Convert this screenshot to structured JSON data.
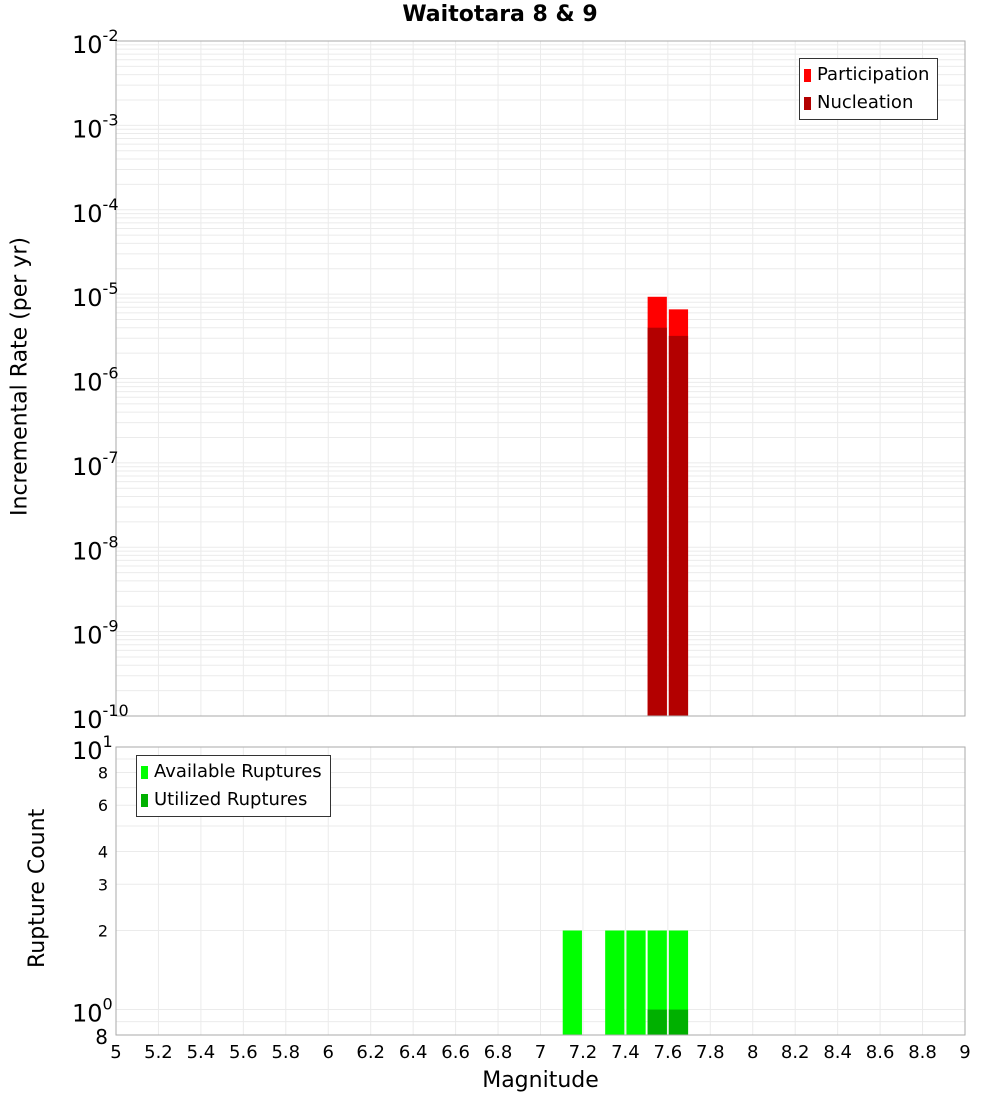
{
  "title": "Waitotara 8 & 9",
  "colors": {
    "participation": "#ff0000",
    "nucleation": "#b30000",
    "available": "#00ff00",
    "utilized": "#00b000",
    "grid": "#ebebeb",
    "frame": "#aaaaaa"
  },
  "top_plot": {
    "ylabel": "Incremental Rate (per yr)",
    "legend": [
      {
        "label": "Participation",
        "color": "#ff0000"
      },
      {
        "label": "Nucleation",
        "color": "#b30000"
      }
    ]
  },
  "bottom_plot": {
    "ylabel": "Rupture Count",
    "legend": [
      {
        "label": "Available Ruptures",
        "color": "#00ff00"
      },
      {
        "label": "Utilized Ruptures",
        "color": "#00b000"
      }
    ]
  },
  "xlabel": "Magnitude",
  "chart_data": [
    {
      "type": "bar",
      "title": "Waitotara 8 & 9",
      "xlabel": "Magnitude",
      "ylabel": "Incremental Rate (per yr)",
      "yscale": "log",
      "xlim": [
        5,
        9
      ],
      "ylim": [
        1e-10,
        0.01
      ],
      "xticks": [
        "5",
        "5.2",
        "5.4",
        "5.6",
        "5.8",
        "6",
        "6.2",
        "6.4",
        "6.6",
        "6.8",
        "7",
        "7.2",
        "7.4",
        "7.6",
        "7.8",
        "8",
        "8.2",
        "8.4",
        "8.6",
        "8.8",
        "9"
      ],
      "yticks": [
        "10^-10",
        "10^-9",
        "10^-8",
        "10^-7",
        "10^-6",
        "10^-5",
        "10^-4",
        "10^-3",
        "10^-2"
      ],
      "grid": true,
      "legend_position": "top-right",
      "bin_width": 0.1,
      "x": [
        7.55,
        7.65
      ],
      "series": [
        {
          "name": "Participation",
          "values": [
            9.3e-06,
            6.6e-06
          ]
        },
        {
          "name": "Nucleation",
          "values": [
            4e-06,
            3.2e-06
          ]
        }
      ]
    },
    {
      "type": "bar",
      "xlabel": "Magnitude",
      "ylabel": "Rupture Count",
      "yscale": "log",
      "xlim": [
        5,
        9
      ],
      "ylim": [
        0.8,
        10
      ],
      "xticks": [
        "5",
        "5.2",
        "5.4",
        "5.6",
        "5.8",
        "6",
        "6.2",
        "6.4",
        "6.6",
        "6.8",
        "7",
        "7.2",
        "7.4",
        "7.6",
        "7.8",
        "8",
        "8.2",
        "8.4",
        "8.6",
        "8.8",
        "9"
      ],
      "yticks": [
        "8",
        "10^0",
        "2",
        "3",
        "4",
        "6",
        "8",
        "10^1"
      ],
      "grid": true,
      "legend_position": "top-left",
      "bin_width": 0.1,
      "x": [
        7.15,
        7.35,
        7.45,
        7.55,
        7.65
      ],
      "series": [
        {
          "name": "Available Ruptures",
          "values": [
            2,
            2,
            2,
            2,
            2
          ]
        },
        {
          "name": "Utilized Ruptures",
          "values": [
            0,
            0,
            0,
            1,
            1
          ]
        }
      ]
    }
  ]
}
